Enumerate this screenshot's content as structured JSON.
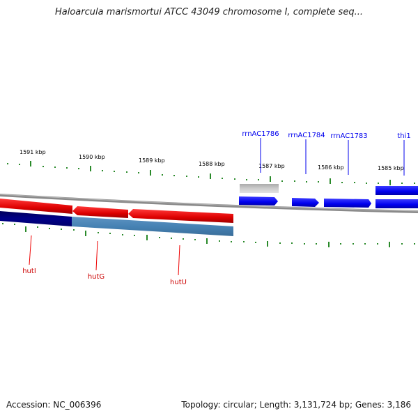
{
  "title": "Haloarcula marismortui ATCC 43049 chromosome I, complete seq...",
  "footer": {
    "accession": "Accession: NC_006396",
    "topology": "Topology: circular; Length: 3,131,724 bp; Genes: 3,186"
  },
  "scale_labels": [
    "1591 kbp",
    "1590 kbp",
    "1589 kbp",
    "1588 kbp",
    "1587 kbp",
    "1586 kbp",
    "1585 kbp"
  ],
  "genes_forward": [
    "rrnAC1786",
    "rrnAC1784",
    "rrnAC1783",
    "thi1"
  ],
  "genes_reverse": [
    "hutI",
    "hutG",
    "hutU"
  ],
  "colors": {
    "forward_gene": "#0000ee",
    "reverse_gene": "#ee0000",
    "rna_feature": "#bbbbbb",
    "tick": "#2a8a2a",
    "backbone": "#888888",
    "dark_blue": "#000080",
    "steel_blue": "#4682b4"
  }
}
